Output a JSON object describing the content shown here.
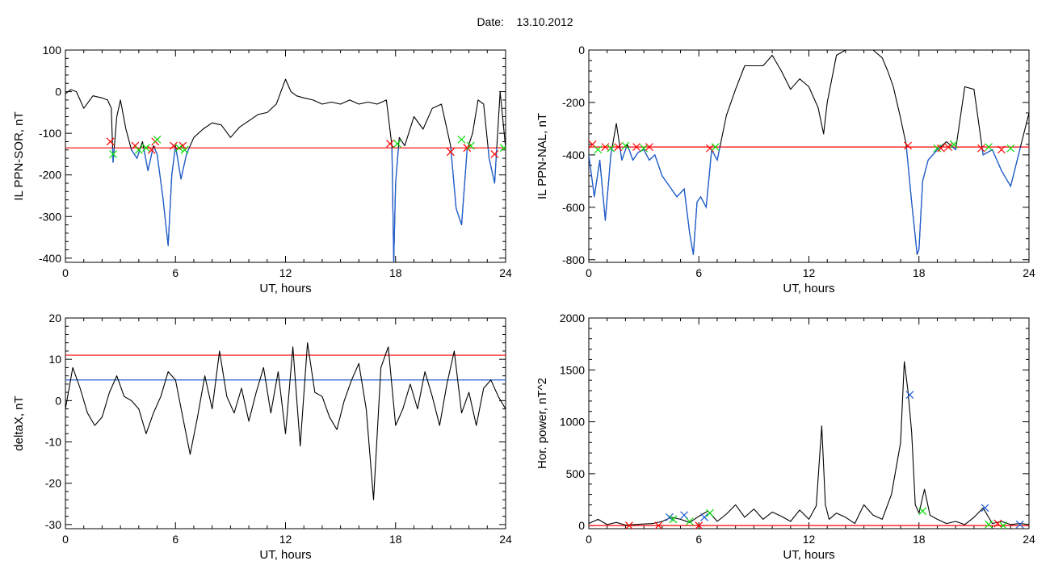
{
  "header": {
    "date_label": "Date:",
    "date_value": "13.10.2012"
  },
  "colors": {
    "signal": "#000000",
    "threshold": "#ff0000",
    "below_threshold": "#1f5fd1",
    "marker_red": "#ff0000",
    "marker_green": "#00dd00",
    "marker_blue": "#1f5fd1"
  },
  "chart_data": [
    {
      "id": "ppn_sor",
      "type": "line",
      "xlabel": "UT, hours",
      "ylabel": "IL PPN-SOR, nT",
      "xlim": [
        0,
        24
      ],
      "ylim": [
        -410,
        100
      ],
      "xticks": [
        0,
        6,
        12,
        18,
        24
      ],
      "yticks": [
        100,
        0,
        -100,
        -200,
        -300,
        -400
      ],
      "threshold": -135,
      "x": [
        0,
        0.3,
        0.6,
        1.0,
        1.5,
        2.0,
        2.3,
        2.5,
        2.6,
        2.8,
        3.0,
        3.3,
        3.6,
        3.9,
        4.2,
        4.5,
        4.8,
        5.0,
        5.3,
        5.6,
        5.8,
        6.0,
        6.3,
        6.6,
        7.0,
        7.5,
        8.0,
        8.5,
        9.0,
        9.5,
        10.0,
        10.5,
        11.0,
        11.5,
        12.0,
        12.3,
        12.6,
        13.0,
        13.5,
        14.0,
        14.5,
        15.0,
        15.5,
        16.0,
        16.5,
        17.0,
        17.5,
        17.8,
        17.9,
        18.0,
        18.2,
        18.5,
        19.0,
        19.5,
        20.0,
        20.5,
        21.0,
        21.3,
        21.6,
        21.9,
        22.2,
        22.5,
        22.8,
        23.1,
        23.4,
        23.7,
        24.0
      ],
      "y": [
        -5,
        5,
        0,
        -40,
        -10,
        -15,
        -20,
        -40,
        -170,
        -60,
        -20,
        -90,
        -140,
        -160,
        -120,
        -190,
        -130,
        -150,
        -250,
        -370,
        -200,
        -130,
        -210,
        -150,
        -110,
        -90,
        -75,
        -80,
        -110,
        -85,
        -70,
        -55,
        -50,
        -30,
        30,
        0,
        -10,
        -15,
        -20,
        -30,
        -25,
        -30,
        -20,
        -30,
        -25,
        -30,
        -20,
        -130,
        -410,
        -220,
        -110,
        -130,
        -60,
        -90,
        -40,
        -30,
        -130,
        -280,
        -320,
        -140,
        -100,
        -20,
        -30,
        -160,
        -220,
        0,
        -135
      ],
      "markers": [
        {
          "x": 2.45,
          "y": -120,
          "color": "red"
        },
        {
          "x": 2.6,
          "y": -150,
          "color": "green"
        },
        {
          "x": 3.8,
          "y": -130,
          "color": "red"
        },
        {
          "x": 4.0,
          "y": -140,
          "color": "green"
        },
        {
          "x": 4.4,
          "y": -135,
          "color": "green"
        },
        {
          "x": 4.7,
          "y": -140,
          "color": "red"
        },
        {
          "x": 4.9,
          "y": -120,
          "color": "red"
        },
        {
          "x": 5.0,
          "y": -115,
          "color": "green"
        },
        {
          "x": 5.9,
          "y": -130,
          "color": "red"
        },
        {
          "x": 6.2,
          "y": -135,
          "color": "green"
        },
        {
          "x": 6.4,
          "y": -130,
          "color": "red"
        },
        {
          "x": 6.5,
          "y": -140,
          "color": "green"
        },
        {
          "x": 17.7,
          "y": -125,
          "color": "red"
        },
        {
          "x": 18.1,
          "y": -125,
          "color": "green"
        },
        {
          "x": 21.0,
          "y": -145,
          "color": "red"
        },
        {
          "x": 21.6,
          "y": -115,
          "color": "green"
        },
        {
          "x": 21.9,
          "y": -135,
          "color": "red"
        },
        {
          "x": 22.1,
          "y": -130,
          "color": "green"
        },
        {
          "x": 23.4,
          "y": -150,
          "color": "red"
        },
        {
          "x": 23.9,
          "y": -135,
          "color": "green"
        }
      ]
    },
    {
      "id": "ppn_nal",
      "type": "line",
      "xlabel": "UT, hours",
      "ylabel": "IL PPN-NAL, nT",
      "xlim": [
        0,
        24
      ],
      "ylim": [
        -810,
        0
      ],
      "xticks": [
        0,
        6,
        12,
        18,
        24
      ],
      "yticks": [
        0,
        -200,
        -400,
        -600,
        -800
      ],
      "threshold": -370,
      "x": [
        0,
        0.3,
        0.6,
        0.9,
        1.2,
        1.5,
        1.8,
        2.1,
        2.4,
        2.7,
        3.0,
        3.3,
        3.6,
        4.0,
        4.4,
        4.8,
        5.2,
        5.5,
        5.7,
        5.9,
        6.1,
        6.4,
        6.7,
        7.0,
        7.5,
        8.0,
        8.5,
        9.0,
        9.5,
        10.0,
        10.5,
        11.0,
        11.5,
        12.0,
        12.5,
        12.8,
        13.0,
        13.5,
        14.0,
        14.5,
        15.0,
        15.5,
        16.0,
        16.3,
        16.6,
        17.0,
        17.3,
        17.6,
        17.9,
        18.0,
        18.2,
        18.5,
        19.0,
        19.5,
        20.0,
        20.5,
        21.0,
        21.5,
        22.0,
        22.5,
        23.0,
        23.5,
        24.0
      ],
      "y": [
        -400,
        -560,
        -420,
        -650,
        -400,
        -280,
        -420,
        -360,
        -420,
        -390,
        -380,
        -420,
        -400,
        -480,
        -520,
        -560,
        -530,
        -700,
        -780,
        -580,
        -560,
        -600,
        -380,
        -420,
        -250,
        -150,
        -60,
        -60,
        -60,
        -20,
        -80,
        -150,
        -110,
        -140,
        -220,
        -320,
        -200,
        -20,
        0,
        0,
        0,
        0,
        -30,
        -80,
        -140,
        -260,
        -360,
        -580,
        -780,
        -760,
        -500,
        -420,
        -380,
        -350,
        -380,
        -140,
        -150,
        -400,
        -380,
        -460,
        -520,
        -380,
        -240
      ],
      "markers": [
        {
          "x": 0.2,
          "y": -360,
          "color": "red"
        },
        {
          "x": 0.5,
          "y": -380,
          "color": "green"
        },
        {
          "x": 0.9,
          "y": -370,
          "color": "red"
        },
        {
          "x": 1.2,
          "y": -375,
          "color": "green"
        },
        {
          "x": 1.6,
          "y": -370,
          "color": "red"
        },
        {
          "x": 2.0,
          "y": -365,
          "color": "green"
        },
        {
          "x": 2.6,
          "y": -370,
          "color": "red"
        },
        {
          "x": 3.0,
          "y": -375,
          "color": "green"
        },
        {
          "x": 3.3,
          "y": -370,
          "color": "red"
        },
        {
          "x": 6.6,
          "y": -375,
          "color": "red"
        },
        {
          "x": 6.9,
          "y": -370,
          "color": "green"
        },
        {
          "x": 17.4,
          "y": -365,
          "color": "red"
        },
        {
          "x": 19.0,
          "y": -375,
          "color": "green"
        },
        {
          "x": 19.2,
          "y": -375,
          "color": "red"
        },
        {
          "x": 19.6,
          "y": -370,
          "color": "red"
        },
        {
          "x": 19.9,
          "y": -360,
          "color": "green"
        },
        {
          "x": 21.4,
          "y": -375,
          "color": "red"
        },
        {
          "x": 21.8,
          "y": -370,
          "color": "green"
        },
        {
          "x": 22.5,
          "y": -380,
          "color": "red"
        },
        {
          "x": 23.0,
          "y": -375,
          "color": "green"
        }
      ]
    },
    {
      "id": "deltax",
      "type": "line",
      "xlabel": "UT, hours",
      "ylabel": "deltaX, nT",
      "xlim": [
        0,
        24
      ],
      "ylim": [
        -31,
        20
      ],
      "xticks": [
        0,
        6,
        12,
        18,
        24
      ],
      "yticks": [
        20,
        10,
        0,
        -10,
        -20,
        -30
      ],
      "thresholds": [
        {
          "value": 11,
          "color": "red"
        },
        {
          "value": 5,
          "color": "blue"
        }
      ],
      "x": [
        0,
        0.4,
        0.8,
        1.2,
        1.6,
        2.0,
        2.4,
        2.8,
        3.2,
        3.6,
        4.0,
        4.4,
        4.8,
        5.2,
        5.6,
        6.0,
        6.4,
        6.8,
        7.2,
        7.6,
        8.0,
        8.4,
        8.8,
        9.2,
        9.6,
        10.0,
        10.4,
        10.8,
        11.2,
        11.6,
        12.0,
        12.4,
        12.8,
        13.2,
        13.6,
        14.0,
        14.4,
        14.8,
        15.2,
        15.6,
        16.0,
        16.4,
        16.8,
        17.2,
        17.6,
        18.0,
        18.4,
        18.8,
        19.2,
        19.6,
        20.0,
        20.4,
        20.8,
        21.2,
        21.6,
        22.0,
        22.4,
        22.8,
        23.2,
        23.6,
        24.0
      ],
      "y": [
        -2,
        8,
        3,
        -3,
        -6,
        -4,
        2,
        6,
        1,
        0,
        -2,
        -8,
        -3,
        1,
        7,
        5,
        -4,
        -13,
        -4,
        6,
        -2,
        12,
        1,
        -3,
        3,
        -5,
        2,
        8,
        -3,
        7,
        -8,
        13,
        -11,
        14,
        2,
        1,
        -4,
        -7,
        0,
        5,
        9,
        -2,
        -24,
        8,
        13,
        -6,
        -2,
        4,
        -2,
        7,
        1,
        -6,
        4,
        12,
        -3,
        2,
        -6,
        3,
        5,
        1,
        -2
      ],
      "markers": []
    },
    {
      "id": "hor_power",
      "type": "line",
      "xlabel": "UT, hours",
      "ylabel": "Hor. power, nT^2",
      "xlim": [
        0,
        24
      ],
      "ylim": [
        -30,
        2000
      ],
      "xticks": [
        0,
        6,
        12,
        18,
        24
      ],
      "yticks": [
        2000,
        1500,
        1000,
        500,
        0
      ],
      "threshold": 0,
      "x": [
        0,
        0.5,
        1.0,
        1.5,
        2.0,
        2.5,
        3.0,
        3.5,
        4.0,
        4.5,
        5.0,
        5.5,
        6.0,
        6.5,
        7.0,
        7.5,
        8.0,
        8.5,
        9.0,
        9.5,
        10.0,
        10.5,
        11.0,
        11.5,
        12.0,
        12.4,
        12.7,
        12.9,
        13.1,
        13.5,
        14.0,
        14.5,
        15.0,
        15.5,
        16.0,
        16.5,
        16.8,
        17.0,
        17.2,
        17.4,
        17.6,
        17.8,
        18.0,
        18.3,
        18.6,
        19.0,
        19.5,
        20.0,
        20.5,
        21.0,
        21.5,
        22.0,
        22.5,
        23.0,
        23.5,
        24.0
      ],
      "y": [
        20,
        60,
        10,
        30,
        5,
        10,
        15,
        20,
        40,
        80,
        60,
        30,
        90,
        140,
        40,
        110,
        200,
        80,
        160,
        60,
        130,
        90,
        40,
        150,
        60,
        190,
        960,
        200,
        60,
        120,
        80,
        20,
        200,
        100,
        60,
        300,
        600,
        800,
        1580,
        1300,
        900,
        200,
        120,
        350,
        100,
        60,
        20,
        40,
        10,
        80,
        170,
        20,
        40,
        10,
        20,
        10
      ],
      "markers": [
        {
          "x": 2.2,
          "y": 0,
          "color": "red"
        },
        {
          "x": 3.8,
          "y": 0,
          "color": "red"
        },
        {
          "x": 4.4,
          "y": 80,
          "color": "blue"
        },
        {
          "x": 4.6,
          "y": 60,
          "color": "green"
        },
        {
          "x": 5.2,
          "y": 100,
          "color": "blue"
        },
        {
          "x": 5.5,
          "y": 40,
          "color": "green"
        },
        {
          "x": 6.0,
          "y": 0,
          "color": "red"
        },
        {
          "x": 6.3,
          "y": 80,
          "color": "blue"
        },
        {
          "x": 6.6,
          "y": 120,
          "color": "green"
        },
        {
          "x": 17.5,
          "y": 1260,
          "color": "blue"
        },
        {
          "x": 18.2,
          "y": 140,
          "color": "green"
        },
        {
          "x": 21.6,
          "y": 170,
          "color": "blue"
        },
        {
          "x": 21.8,
          "y": 10,
          "color": "green"
        },
        {
          "x": 22.3,
          "y": 20,
          "color": "red"
        },
        {
          "x": 22.6,
          "y": 0,
          "color": "green"
        },
        {
          "x": 23.5,
          "y": 10,
          "color": "blue"
        }
      ]
    }
  ]
}
